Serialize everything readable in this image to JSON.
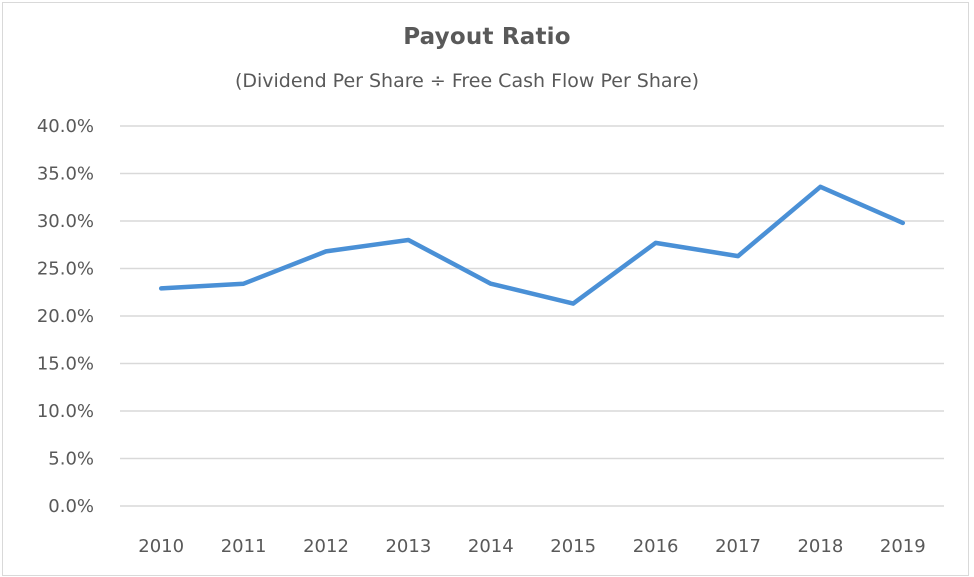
{
  "chart_data": {
    "type": "line",
    "title": "Payout Ratio",
    "subtitle": "(Dividend Per Share ÷ Free Cash Flow Per Share)",
    "xlabel": "",
    "ylabel": "",
    "categories": [
      "2010",
      "2011",
      "2012",
      "2013",
      "2014",
      "2015",
      "2016",
      "2017",
      "2018",
      "2019"
    ],
    "series": [
      {
        "name": "Payout Ratio",
        "color": "#4a90d6",
        "values": [
          22.9,
          23.4,
          26.8,
          28.0,
          23.4,
          21.3,
          27.7,
          26.3,
          33.6,
          29.8
        ]
      }
    ],
    "ylim": [
      0,
      40
    ],
    "yticks": [
      "0.0%",
      "5.0%",
      "10.0%",
      "15.0%",
      "20.0%",
      "25.0%",
      "30.0%",
      "35.0%",
      "40.0%"
    ],
    "grid": true,
    "legend": "none"
  },
  "colors": {
    "line": "#4a90d6",
    "grid": "#d9d9d9",
    "text": "#595959",
    "border": "#d9d9d9"
  }
}
